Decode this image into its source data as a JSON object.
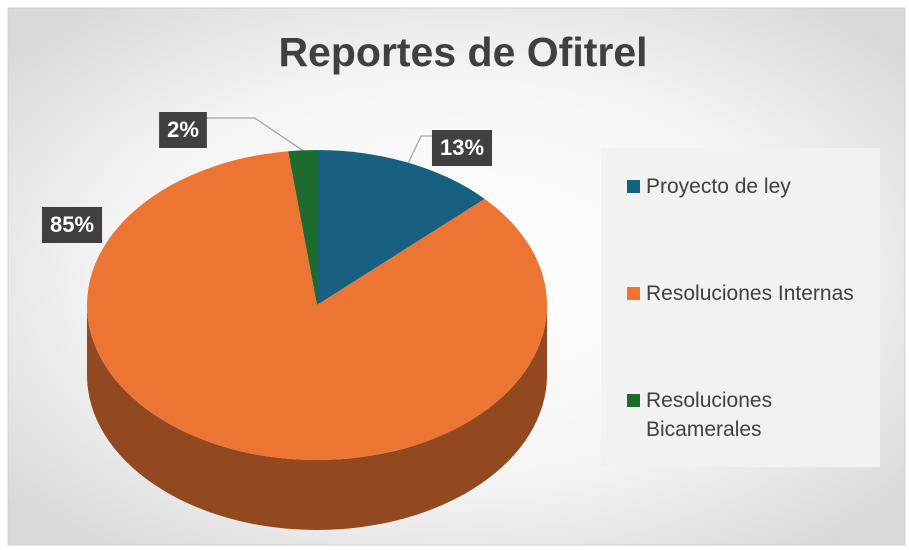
{
  "chart_data": {
    "type": "pie",
    "title": "Reportes de Ofitrel",
    "categories": [
      "Proyecto de ley",
      "Resoluciones Internas",
      "Resoluciones Bicamerales"
    ],
    "values": [
      13,
      85,
      2
    ],
    "value_labels": [
      "13%",
      "85%",
      "2%"
    ],
    "colors": [
      "#17607f",
      "#ed7534",
      "#1e6b2e"
    ],
    "legend": "right"
  }
}
